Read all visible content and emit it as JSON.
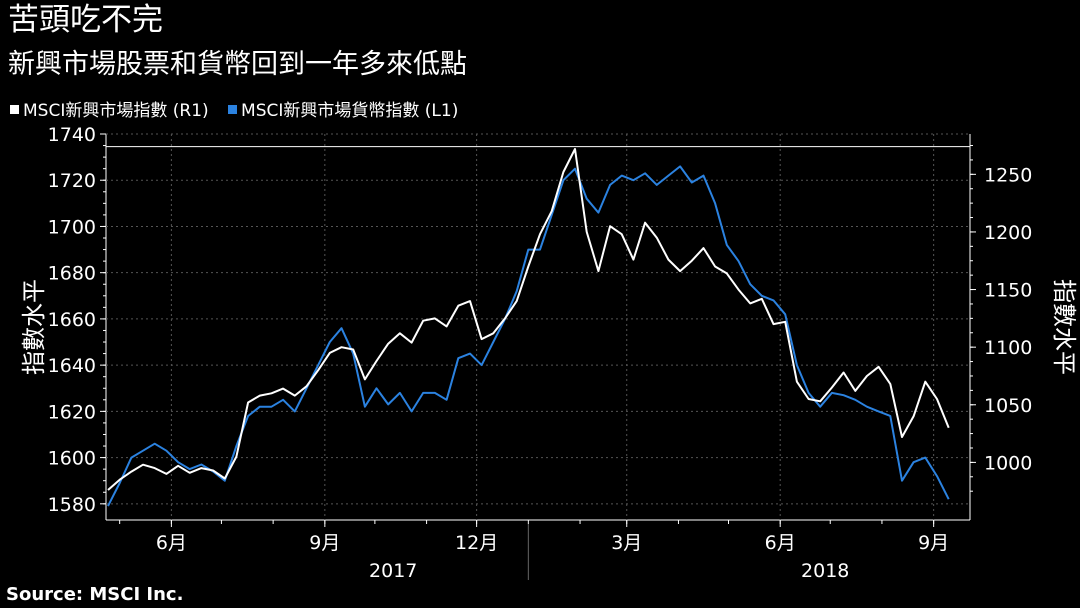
{
  "title": "苦頭吃不完",
  "subtitle": "新興市場股票和貨幣回到一年多來低點",
  "source": "Source: MSCI Inc.",
  "colors": {
    "background": "#000000",
    "white_series": "#ffffff",
    "blue_series": "#2b82e0",
    "grid": "#555555"
  },
  "chart_data": {
    "type": "line",
    "legend_position": "top-left",
    "grid": true,
    "ylabel_left": "指數水平",
    "ylabel_right": "指數水平",
    "ylim_left": [
      1573,
      1740
    ],
    "ylim_right": [
      950,
      1285
    ],
    "yticks_left": [
      "1740",
      "1720",
      "1700",
      "1680",
      "1660",
      "1640",
      "1620",
      "1600",
      "1580"
    ],
    "yticks_right": [
      "1250",
      "1200",
      "1150",
      "1100",
      "1050",
      "1000"
    ],
    "xlim": [
      "2017-04-24",
      "2018-09-12"
    ],
    "x_month_ticks": [
      {
        "date": "2017-06-01",
        "label": "6月"
      },
      {
        "date": "2017-09-01",
        "label": "9月"
      },
      {
        "date": "2017-12-01",
        "label": "12月"
      },
      {
        "date": "2018-03-01",
        "label": "3月"
      },
      {
        "date": "2018-06-01",
        "label": "6月"
      },
      {
        "date": "2018-09-01",
        "label": "9月"
      }
    ],
    "x_year_labels": [
      {
        "date": "2017-10-12",
        "label": "2017"
      },
      {
        "date": "2018-06-28",
        "label": "2018"
      }
    ],
    "year_divider": "2018-01-01",
    "reference_line": {
      "axis": "right",
      "value": 1274
    },
    "series": [
      {
        "name": "MSCI新興市場指數 (R1)",
        "axis": "right",
        "color": "#ffffff",
        "points": [
          [
            "2017-04-24",
            976
          ],
          [
            "2017-05-01",
            985
          ],
          [
            "2017-05-08",
            992
          ],
          [
            "2017-05-15",
            998
          ],
          [
            "2017-05-22",
            995
          ],
          [
            "2017-05-29",
            990
          ],
          [
            "2017-06-05",
            997
          ],
          [
            "2017-06-12",
            991
          ],
          [
            "2017-06-19",
            995
          ],
          [
            "2017-06-26",
            993
          ],
          [
            "2017-07-03",
            986
          ],
          [
            "2017-07-10",
            1005
          ],
          [
            "2017-07-17",
            1052
          ],
          [
            "2017-07-24",
            1058
          ],
          [
            "2017-07-31",
            1060
          ],
          [
            "2017-08-07",
            1064
          ],
          [
            "2017-08-14",
            1058
          ],
          [
            "2017-08-21",
            1066
          ],
          [
            "2017-08-28",
            1080
          ],
          [
            "2017-09-04",
            1095
          ],
          [
            "2017-09-11",
            1100
          ],
          [
            "2017-09-18",
            1098
          ],
          [
            "2017-09-25",
            1072
          ],
          [
            "2017-10-02",
            1088
          ],
          [
            "2017-10-09",
            1103
          ],
          [
            "2017-10-16",
            1112
          ],
          [
            "2017-10-23",
            1104
          ],
          [
            "2017-10-30",
            1123
          ],
          [
            "2017-11-06",
            1125
          ],
          [
            "2017-11-13",
            1118
          ],
          [
            "2017-11-20",
            1136
          ],
          [
            "2017-11-27",
            1140
          ],
          [
            "2017-12-04",
            1107
          ],
          [
            "2017-12-11",
            1112
          ],
          [
            "2017-12-18",
            1125
          ],
          [
            "2017-12-25",
            1140
          ],
          [
            "2018-01-01",
            1170
          ],
          [
            "2018-01-08",
            1198
          ],
          [
            "2018-01-15",
            1218
          ],
          [
            "2018-01-22",
            1252
          ],
          [
            "2018-01-29",
            1272
          ],
          [
            "2018-02-05",
            1200
          ],
          [
            "2018-02-12",
            1166
          ],
          [
            "2018-02-19",
            1205
          ],
          [
            "2018-02-26",
            1198
          ],
          [
            "2018-03-05",
            1176
          ],
          [
            "2018-03-12",
            1208
          ],
          [
            "2018-03-19",
            1195
          ],
          [
            "2018-03-26",
            1176
          ],
          [
            "2018-04-02",
            1166
          ],
          [
            "2018-04-09",
            1175
          ],
          [
            "2018-04-16",
            1186
          ],
          [
            "2018-04-23",
            1170
          ],
          [
            "2018-04-30",
            1164
          ],
          [
            "2018-05-07",
            1150
          ],
          [
            "2018-05-14",
            1138
          ],
          [
            "2018-05-21",
            1142
          ],
          [
            "2018-05-28",
            1120
          ],
          [
            "2018-06-04",
            1122
          ],
          [
            "2018-06-11",
            1070
          ],
          [
            "2018-06-18",
            1055
          ],
          [
            "2018-06-25",
            1053
          ],
          [
            "2018-07-02",
            1065
          ],
          [
            "2018-07-09",
            1078
          ],
          [
            "2018-07-16",
            1062
          ],
          [
            "2018-07-23",
            1075
          ],
          [
            "2018-07-30",
            1083
          ],
          [
            "2018-08-06",
            1068
          ],
          [
            "2018-08-13",
            1022
          ],
          [
            "2018-08-20",
            1040
          ],
          [
            "2018-08-27",
            1070
          ],
          [
            "2018-09-03",
            1055
          ],
          [
            "2018-09-10",
            1030
          ]
        ]
      },
      {
        "name": "MSCI新興市場貨幣指數 (L1)",
        "axis": "left",
        "color": "#2b82e0",
        "points": [
          [
            "2017-04-24",
            1579
          ],
          [
            "2017-05-01",
            1589
          ],
          [
            "2017-05-08",
            1600
          ],
          [
            "2017-05-15",
            1603
          ],
          [
            "2017-05-22",
            1606
          ],
          [
            "2017-05-29",
            1603
          ],
          [
            "2017-06-05",
            1598
          ],
          [
            "2017-06-12",
            1595
          ],
          [
            "2017-06-19",
            1597
          ],
          [
            "2017-06-26",
            1594
          ],
          [
            "2017-07-03",
            1590
          ],
          [
            "2017-07-10",
            1605
          ],
          [
            "2017-07-17",
            1618
          ],
          [
            "2017-07-24",
            1622
          ],
          [
            "2017-07-31",
            1622
          ],
          [
            "2017-08-07",
            1625
          ],
          [
            "2017-08-14",
            1620
          ],
          [
            "2017-08-21",
            1630
          ],
          [
            "2017-08-28",
            1640
          ],
          [
            "2017-09-04",
            1650
          ],
          [
            "2017-09-11",
            1656
          ],
          [
            "2017-09-18",
            1645
          ],
          [
            "2017-09-25",
            1622
          ],
          [
            "2017-10-02",
            1630
          ],
          [
            "2017-10-09",
            1623
          ],
          [
            "2017-10-16",
            1628
          ],
          [
            "2017-10-23",
            1620
          ],
          [
            "2017-10-30",
            1628
          ],
          [
            "2017-11-06",
            1628
          ],
          [
            "2017-11-13",
            1625
          ],
          [
            "2017-11-20",
            1643
          ],
          [
            "2017-11-27",
            1645
          ],
          [
            "2017-12-04",
            1640
          ],
          [
            "2017-12-11",
            1650
          ],
          [
            "2017-12-18",
            1660
          ],
          [
            "2017-12-25",
            1672
          ],
          [
            "2018-01-01",
            1690
          ],
          [
            "2018-01-08",
            1690
          ],
          [
            "2018-01-15",
            1705
          ],
          [
            "2018-01-22",
            1720
          ],
          [
            "2018-01-29",
            1725
          ],
          [
            "2018-02-05",
            1712
          ],
          [
            "2018-02-12",
            1706
          ],
          [
            "2018-02-19",
            1718
          ],
          [
            "2018-02-26",
            1722
          ],
          [
            "2018-03-05",
            1720
          ],
          [
            "2018-03-12",
            1723
          ],
          [
            "2018-03-19",
            1718
          ],
          [
            "2018-03-26",
            1722
          ],
          [
            "2018-04-02",
            1726
          ],
          [
            "2018-04-09",
            1719
          ],
          [
            "2018-04-16",
            1722
          ],
          [
            "2018-04-23",
            1710
          ],
          [
            "2018-04-30",
            1692
          ],
          [
            "2018-05-07",
            1685
          ],
          [
            "2018-05-14",
            1675
          ],
          [
            "2018-05-21",
            1670
          ],
          [
            "2018-05-28",
            1668
          ],
          [
            "2018-06-04",
            1662
          ],
          [
            "2018-06-11",
            1640
          ],
          [
            "2018-06-18",
            1628
          ],
          [
            "2018-06-25",
            1622
          ],
          [
            "2018-07-02",
            1628
          ],
          [
            "2018-07-09",
            1627
          ],
          [
            "2018-07-16",
            1625
          ],
          [
            "2018-07-23",
            1622
          ],
          [
            "2018-07-30",
            1620
          ],
          [
            "2018-08-06",
            1618
          ],
          [
            "2018-08-13",
            1590
          ],
          [
            "2018-08-20",
            1598
          ],
          [
            "2018-08-27",
            1600
          ],
          [
            "2018-09-03",
            1592
          ],
          [
            "2018-09-10",
            1582
          ]
        ]
      }
    ]
  }
}
